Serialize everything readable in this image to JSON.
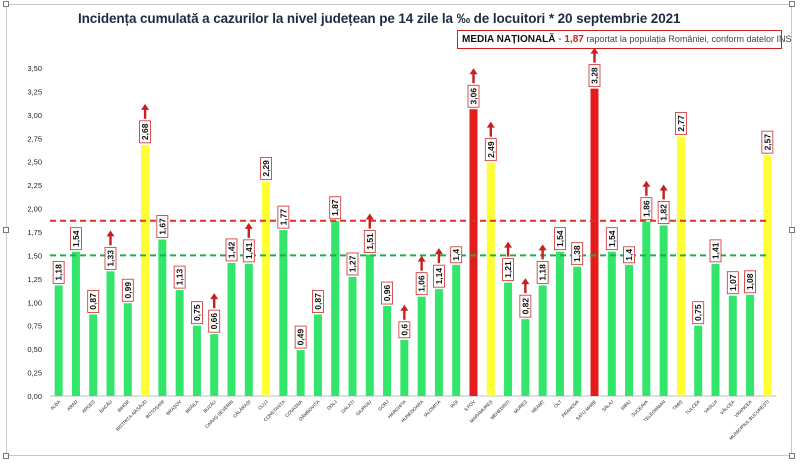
{
  "title": "Incidența cumulată a cazurilor la nivel județean pe 14 zile la ‰ de locuitori * 20 septembrie 2021",
  "media_box": {
    "label": "MEDIA NAȚIONALĂ",
    "separator": " - ",
    "value": "1,87",
    "text": " raportat la populația României, conform datelor INS"
  },
  "colors": {
    "green": "#33e56b",
    "yellow": "#ffff33",
    "red": "#e51c1c",
    "arrow": "#c62121",
    "red_dashed_line": "#d9332b",
    "green_dashed_line": "#1fae4e",
    "label_border": "#cc2a2a"
  },
  "chart_data": {
    "type": "bar",
    "title": "Incidența cumulată a cazurilor la nivel județean pe 14 zile la ‰ de locuitori * 20 septembrie 2021",
    "ylim": [
      0,
      3.5
    ],
    "yticks": [
      "0,00",
      "0,25",
      "0,50",
      "0,75",
      "1,00",
      "1,25",
      "1,50",
      "1,75",
      "2,00",
      "2,25",
      "2,50",
      "2,75",
      "3,00",
      "3,25",
      "3,50"
    ],
    "reference_lines": [
      {
        "value": 1.87,
        "style": "dashed",
        "color": "red"
      },
      {
        "value": 1.5,
        "style": "dashed",
        "color": "green"
      }
    ],
    "grid": false,
    "categories": [
      {
        "name": "ALBA",
        "value": 1.18,
        "label": "1,18",
        "color": "green",
        "arrow": false
      },
      {
        "name": "ARAD",
        "value": 1.54,
        "label": "1,54",
        "color": "green",
        "arrow": false
      },
      {
        "name": "ARGEȘ",
        "value": 0.87,
        "label": "0,87",
        "color": "green",
        "arrow": false
      },
      {
        "name": "BACĂU",
        "value": 1.33,
        "label": "1,33",
        "color": "green",
        "arrow": true
      },
      {
        "name": "BIHOR",
        "value": 0.99,
        "label": "0,99",
        "color": "green",
        "arrow": false
      },
      {
        "name": "BISTRIȚA-NĂSĂUD",
        "value": 2.68,
        "label": "2,68",
        "color": "yellow",
        "arrow": true
      },
      {
        "name": "BOTOȘANI",
        "value": 1.67,
        "label": "1,67",
        "color": "green",
        "arrow": false
      },
      {
        "name": "BRAȘOV",
        "value": 1.13,
        "label": "1,13",
        "color": "green",
        "arrow": false
      },
      {
        "name": "BRĂILA",
        "value": 0.75,
        "label": "0,75",
        "color": "green",
        "arrow": false
      },
      {
        "name": "BUZĂU",
        "value": 0.66,
        "label": "0,66",
        "color": "green",
        "arrow": true
      },
      {
        "name": "CARAȘ-SEVERIN",
        "value": 1.42,
        "label": "1,42",
        "color": "green",
        "arrow": false
      },
      {
        "name": "CĂLĂRAȘI",
        "value": 1.41,
        "label": "1,41",
        "color": "green",
        "arrow": true
      },
      {
        "name": "CLUJ",
        "value": 2.29,
        "label": "2,29",
        "color": "yellow",
        "arrow": false
      },
      {
        "name": "CONSTANȚA",
        "value": 1.77,
        "label": "1,77",
        "color": "green",
        "arrow": false
      },
      {
        "name": "COVASNA",
        "value": 0.49,
        "label": "0,49",
        "color": "green",
        "arrow": false
      },
      {
        "name": "DÂMBOVIȚA",
        "value": 0.87,
        "label": "0,87",
        "color": "green",
        "arrow": false
      },
      {
        "name": "DOLJ",
        "value": 1.87,
        "label": "1,87",
        "color": "green",
        "arrow": false
      },
      {
        "name": "GALAȚI",
        "value": 1.27,
        "label": "1,27",
        "color": "green",
        "arrow": false
      },
      {
        "name": "GIURGIU",
        "value": 1.51,
        "label": "1,51",
        "color": "green",
        "arrow": true
      },
      {
        "name": "GORJ",
        "value": 0.96,
        "label": "0,96",
        "color": "green",
        "arrow": false
      },
      {
        "name": "HARGHITA",
        "value": 0.6,
        "label": "0,6",
        "color": "green",
        "arrow": true
      },
      {
        "name": "HUNEDOARA",
        "value": 1.06,
        "label": "1,06",
        "color": "green",
        "arrow": true
      },
      {
        "name": "IALOMIȚA",
        "value": 1.14,
        "label": "1,14",
        "color": "green",
        "arrow": true
      },
      {
        "name": "IAȘI",
        "value": 1.4,
        "label": "1,4",
        "color": "green",
        "arrow": false
      },
      {
        "name": "ILFOV",
        "value": 3.06,
        "label": "3,06",
        "color": "red",
        "arrow": true
      },
      {
        "name": "MARAMUREȘ",
        "value": 2.49,
        "label": "2,49",
        "color": "yellow",
        "arrow": true
      },
      {
        "name": "MEHEDINȚI",
        "value": 1.21,
        "label": "1,21",
        "color": "green",
        "arrow": true
      },
      {
        "name": "MUREȘ",
        "value": 0.82,
        "label": "0,82",
        "color": "green",
        "arrow": true
      },
      {
        "name": "NEAMȚ",
        "value": 1.18,
        "label": "1,18",
        "color": "green",
        "arrow": true
      },
      {
        "name": "OLT",
        "value": 1.54,
        "label": "1,54",
        "color": "green",
        "arrow": false
      },
      {
        "name": "PRAHOVA",
        "value": 1.38,
        "label": "1,38",
        "color": "green",
        "arrow": false
      },
      {
        "name": "SATU MARE",
        "value": 3.28,
        "label": "3,28",
        "color": "red",
        "arrow": true
      },
      {
        "name": "SĂLAJ",
        "value": 1.54,
        "label": "1,54",
        "color": "green",
        "arrow": false
      },
      {
        "name": "SIBIU",
        "value": 1.4,
        "label": "1,4",
        "color": "green",
        "arrow": false
      },
      {
        "name": "SUCEAVA",
        "value": 1.86,
        "label": "1,86",
        "color": "green",
        "arrow": true
      },
      {
        "name": "TELEORMAN",
        "value": 1.82,
        "label": "1,82",
        "color": "green",
        "arrow": true
      },
      {
        "name": "TIMIȘ",
        "value": 2.77,
        "label": "2,77",
        "color": "yellow",
        "arrow": false
      },
      {
        "name": "TULCEA",
        "value": 0.75,
        "label": "0,75",
        "color": "green",
        "arrow": false
      },
      {
        "name": "VASLUI",
        "value": 1.41,
        "label": "1,41",
        "color": "green",
        "arrow": false
      },
      {
        "name": "VÂLCEA",
        "value": 1.07,
        "label": "1,07",
        "color": "green",
        "arrow": false
      },
      {
        "name": "VRANCEA",
        "value": 1.08,
        "label": "1,08",
        "color": "green",
        "arrow": false
      },
      {
        "name": "MUNICIPIUL BUCUREȘTI",
        "value": 2.57,
        "label": "2,57",
        "color": "yellow",
        "arrow": false
      }
    ]
  }
}
